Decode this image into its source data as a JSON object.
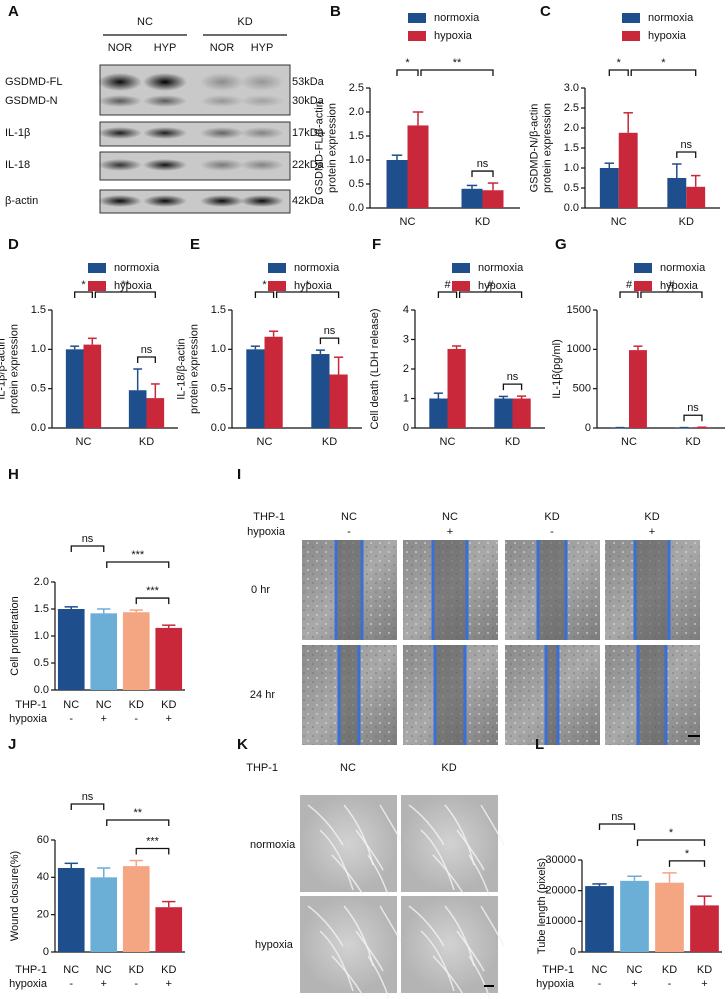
{
  "blot": {
    "panel": "A",
    "groups": [
      "NC",
      "KD"
    ],
    "lanes": [
      "NOR",
      "HYP",
      "NOR",
      "HYP"
    ],
    "bands": [
      {
        "label": "GSDMD-FL",
        "size": "53kDa"
      },
      {
        "label": "GSDMD-N",
        "size": "30kDa"
      },
      {
        "label": "IL-1β",
        "size": "17kDa"
      },
      {
        "label": "IL-18",
        "size": "22kDa"
      },
      {
        "label": "β-actin",
        "size": "42kDa"
      }
    ]
  },
  "wound": {
    "panel": "I",
    "row_labels": [
      "THP-1",
      "hypoxia"
    ],
    "columns": [
      {
        "thp1": "NC",
        "hypoxia": "-"
      },
      {
        "thp1": "NC",
        "hypoxia": "+"
      },
      {
        "thp1": "KD",
        "hypoxia": "-"
      },
      {
        "thp1": "KD",
        "hypoxia": "+"
      }
    ],
    "times": [
      "0 hr",
      "24 hr"
    ]
  },
  "tube": {
    "panel": "K",
    "row_label": "THP-1",
    "columns": [
      "NC",
      "KD"
    ],
    "conditions": [
      "normoxia",
      "hypoxia"
    ]
  },
  "chart_data": [
    {
      "type": "bar",
      "panel": "B",
      "ylabel": [
        "GSDMD-FL/β-actin",
        "protein expression"
      ],
      "categories": [
        "NC",
        "KD"
      ],
      "series": [
        {
          "name": "normoxia",
          "color": "#1f4e8c",
          "values": [
            1.0,
            0.4
          ],
          "errors": [
            0.1,
            0.07
          ]
        },
        {
          "name": "hypoxia",
          "color": "#c8283a",
          "values": [
            1.72,
            0.37
          ],
          "errors": [
            0.28,
            0.15
          ]
        }
      ],
      "ylim": [
        0,
        2.5
      ],
      "yticks": [
        {
          "value": 0,
          "label": "0.0"
        },
        0.5,
        {
          "value": 1,
          "label": "1.0"
        },
        1.5,
        {
          "value": 2,
          "label": "2.0"
        },
        2.5
      ],
      "annotations": [
        "*",
        "**",
        "ns"
      ]
    },
    {
      "type": "bar",
      "panel": "C",
      "ylabel": [
        "GSDMD-N/β-actin",
        "protein expression"
      ],
      "categories": [
        "NC",
        "KD"
      ],
      "series": [
        {
          "name": "normoxia",
          "color": "#1f4e8c",
          "values": [
            1.0,
            0.75
          ],
          "errors": [
            0.12,
            0.35
          ]
        },
        {
          "name": "hypoxia",
          "color": "#c8283a",
          "values": [
            1.88,
            0.53
          ],
          "errors": [
            0.5,
            0.28
          ]
        }
      ],
      "ylim": [
        0,
        3
      ],
      "yticks": [
        {
          "value": 0,
          "label": "0.0"
        },
        0.5,
        {
          "value": 1,
          "label": "1.0"
        },
        1.5,
        {
          "value": 2,
          "label": "2.0"
        },
        2.5,
        {
          "value": 3,
          "label": "3.0"
        }
      ],
      "annotations": [
        "*",
        "*",
        "ns"
      ]
    },
    {
      "type": "bar",
      "panel": "D",
      "ylabel": [
        "IL-1β/β-actin",
        "protein expression"
      ],
      "categories": [
        "NC",
        "KD"
      ],
      "series": [
        {
          "name": "normoxia",
          "color": "#1f4e8c",
          "values": [
            1.0,
            0.48
          ],
          "errors": [
            0.04,
            0.27
          ]
        },
        {
          "name": "hypoxia",
          "color": "#c8283a",
          "values": [
            1.06,
            0.38
          ],
          "errors": [
            0.08,
            0.18
          ]
        }
      ],
      "ylim": [
        0,
        1.5
      ],
      "yticks": [
        {
          "value": 0,
          "label": "0.0"
        },
        0.5,
        {
          "value": 1,
          "label": "1.0"
        },
        1.5
      ],
      "annotations": [
        "*",
        "**",
        "ns"
      ]
    },
    {
      "type": "bar",
      "panel": "E",
      "ylabel": [
        "IL-18/β-actin",
        "protein expression"
      ],
      "categories": [
        "NC",
        "KD"
      ],
      "series": [
        {
          "name": "normoxia",
          "color": "#1f4e8c",
          "values": [
            1.0,
            0.94
          ],
          "errors": [
            0.04,
            0.05
          ]
        },
        {
          "name": "hypoxia",
          "color": "#c8283a",
          "values": [
            1.16,
            0.68
          ],
          "errors": [
            0.07,
            0.22
          ]
        }
      ],
      "ylim": [
        0,
        1.5
      ],
      "yticks": [
        {
          "value": 0,
          "label": "0.0"
        },
        0.5,
        {
          "value": 1,
          "label": "1.0"
        },
        1.5
      ],
      "annotations": [
        "*",
        "*",
        "ns"
      ]
    },
    {
      "type": "bar",
      "panel": "F",
      "ylabel": [
        "Cell death (LDH release)"
      ],
      "categories": [
        "NC",
        "KD"
      ],
      "series": [
        {
          "name": "normoxia",
          "color": "#1f4e8c",
          "values": [
            1.0,
            1.0
          ],
          "errors": [
            0.18,
            0.07
          ]
        },
        {
          "name": "hypoxia",
          "color": "#c8283a",
          "values": [
            2.68,
            1.0
          ],
          "errors": [
            0.1,
            0.08
          ]
        }
      ],
      "ylim": [
        0,
        4
      ],
      "yticks": [
        0,
        1,
        2,
        3,
        4
      ],
      "annotations": [
        "#",
        "#",
        "ns"
      ]
    },
    {
      "type": "bar",
      "panel": "G",
      "ylabel": [
        "IL-1β(pg/ml)"
      ],
      "categories": [
        "NC",
        "KD"
      ],
      "series": [
        {
          "name": "normoxia",
          "color": "#1f4e8c",
          "values": [
            5,
            5
          ],
          "errors": [
            0,
            0
          ]
        },
        {
          "name": "hypoxia",
          "color": "#c8283a",
          "values": [
            990,
            10
          ],
          "errors": [
            50,
            0
          ]
        }
      ],
      "ylim": [
        0,
        1500
      ],
      "yticks": [
        0,
        500,
        1000,
        1500
      ],
      "annotations": [
        "#",
        "#",
        "ns"
      ]
    },
    {
      "type": "bar",
      "panel": "H",
      "ylabel": [
        "Cell proliferation"
      ],
      "row_labels": [
        "THP-1",
        "hypoxia"
      ],
      "categories": [
        "NC",
        "NC",
        "KD",
        "KD"
      ],
      "hypoxia": [
        "-",
        "+",
        "-",
        "+"
      ],
      "values": [
        1.5,
        1.42,
        1.44,
        1.15
      ],
      "errors": [
        0.04,
        0.08,
        0.04,
        0.05
      ],
      "colors": [
        "#1f4e8c",
        "#6baed6",
        "#f4a582",
        "#c8283a"
      ],
      "ylim": [
        0,
        2
      ],
      "yticks": [
        {
          "value": 0,
          "label": "0.0"
        },
        0.5,
        {
          "value": 1,
          "label": "1.0"
        },
        1.5,
        {
          "value": 2,
          "label": "2.0"
        }
      ],
      "annotations": [
        "ns",
        "***",
        "***"
      ]
    },
    {
      "type": "bar",
      "panel": "J",
      "ylabel": [
        "Wound closure(%)"
      ],
      "row_labels": [
        "THP-1",
        "hypoxia"
      ],
      "categories": [
        "NC",
        "NC",
        "KD",
        "KD"
      ],
      "hypoxia": [
        "-",
        "+",
        "-",
        "+"
      ],
      "values": [
        45,
        40,
        46,
        24
      ],
      "errors": [
        2.5,
        5,
        3,
        3
      ],
      "colors": [
        "#1f4e8c",
        "#6baed6",
        "#f4a582",
        "#c8283a"
      ],
      "ylim": [
        0,
        60
      ],
      "yticks": [
        0,
        20,
        40,
        60
      ],
      "annotations": [
        "ns",
        "**",
        "***"
      ]
    },
    {
      "type": "bar",
      "panel": "L",
      "ylabel": [
        "Tube length (pixels)"
      ],
      "row_labels": [
        "THP-1",
        "hypoxia"
      ],
      "categories": [
        "NC",
        "NC",
        "KD",
        "KD"
      ],
      "hypoxia": [
        "-",
        "+",
        "-",
        "+"
      ],
      "values": [
        21500,
        23200,
        22600,
        15200
      ],
      "errors": [
        700,
        1500,
        3200,
        3000
      ],
      "colors": [
        "#1f4e8c",
        "#6baed6",
        "#f4a582",
        "#c8283a"
      ],
      "ylim": [
        0,
        30000
      ],
      "yticks": [
        0,
        10000,
        20000,
        30000
      ],
      "annotations": [
        "ns",
        "*",
        "*"
      ]
    }
  ]
}
